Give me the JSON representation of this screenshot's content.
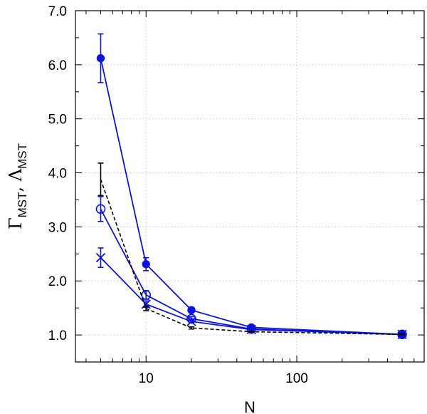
{
  "chart_data": {
    "type": "line",
    "title": "",
    "xlabel": "N",
    "ylabel": {
      "part1_main": "Γ",
      "part1_sub": "MST",
      "separator": ", ",
      "part2_main": "Λ",
      "part2_sub": "MST"
    },
    "x_scale": "log",
    "xlim": [
      3.4,
      700
    ],
    "ylim": [
      0.5,
      7.0
    ],
    "x_ticks": [
      10,
      100
    ],
    "x_tick_labels": [
      "10",
      "100"
    ],
    "y_ticks": [
      1.0,
      2.0,
      3.0,
      4.0,
      5.0,
      6.0,
      7.0
    ],
    "y_tick_labels": [
      "1.0",
      "2.0",
      "3.0",
      "4.0",
      "5.0",
      "6.0",
      "7.0"
    ],
    "grid": true,
    "legend": "none",
    "series": [
      {
        "marker": "filled-circle",
        "linestyle": "solid",
        "color": "#0a14dc",
        "x": [
          5,
          10,
          20,
          50,
          500
        ],
        "y": [
          6.12,
          2.31,
          1.46,
          1.14,
          1.01
        ],
        "yerr": [
          0.45,
          0.12,
          0.05,
          0.03,
          0.02
        ]
      },
      {
        "marker": "open-circle",
        "linestyle": "solid",
        "color": "#0a14dc",
        "x": [
          5,
          10,
          20,
          50,
          500
        ],
        "y": [
          3.33,
          1.74,
          1.3,
          1.11,
          1.01
        ],
        "yerr": [
          0.23,
          0.08,
          0.04,
          0.02,
          0.01
        ]
      },
      {
        "marker": "cross",
        "linestyle": "solid",
        "color": "#0a14dc",
        "x": [
          5,
          10,
          20,
          50,
          500
        ],
        "y": [
          2.43,
          1.57,
          1.25,
          1.1,
          1.01
        ],
        "yerr": [
          0.18,
          0.06,
          0.03,
          0.02,
          0.01
        ]
      },
      {
        "marker": "none",
        "linestyle": "dashed",
        "color": "#000000",
        "x": [
          5,
          10,
          20,
          50,
          500
        ],
        "y": [
          3.88,
          1.49,
          1.13,
          1.06,
          1.01
        ],
        "yerr": [
          0.3,
          0.04,
          0.02,
          0.01,
          0.01
        ]
      }
    ]
  }
}
